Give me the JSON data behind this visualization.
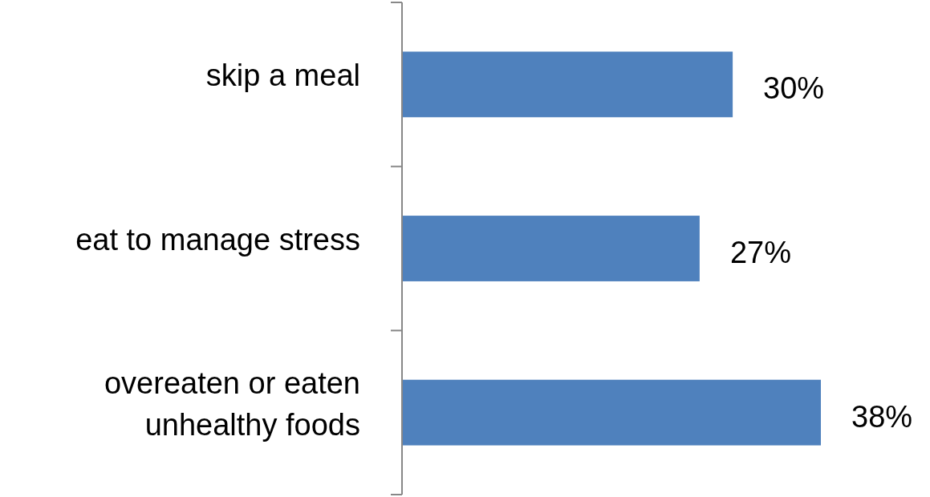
{
  "chart_data": {
    "type": "bar",
    "orientation": "horizontal",
    "categories": [
      "skip a meal",
      "eat to manage stress",
      "overeaten or eaten unhealthy foods"
    ],
    "values": [
      30,
      27,
      38
    ],
    "color": "#4f81bd",
    "value_labels": [
      "30%",
      "27%",
      "38%"
    ]
  }
}
